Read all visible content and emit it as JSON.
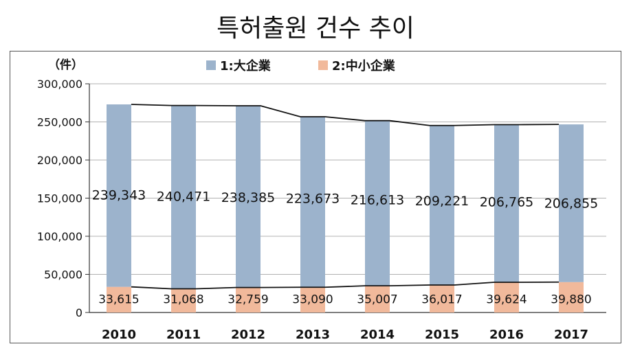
{
  "page_title": "특허출원 건수 추이",
  "colors": {
    "large": "#9cb3cc",
    "sme": "#f1b99b",
    "line": "#111111",
    "grid": "#b0b0b0"
  },
  "chart_data": {
    "type": "bar",
    "stacked": true,
    "title": "특허출원 건수 추이",
    "unit_label": "（件）",
    "categories": [
      "2010",
      "2011",
      "2012",
      "2013",
      "2014",
      "2015",
      "2016",
      "2017"
    ],
    "series": [
      {
        "name": "2:中小企業",
        "values": [
          33615,
          31068,
          32759,
          33090,
          35007,
          36017,
          39624,
          39880
        ]
      },
      {
        "name": "1:大企業",
        "values": [
          239343,
          240471,
          238385,
          223673,
          216613,
          209221,
          206765,
          206855
        ]
      }
    ],
    "value_labels": {
      "large": [
        "239,343",
        "240,471",
        "238,385",
        "223,673",
        "216,613",
        "209,221",
        "206,765",
        "206,855"
      ],
      "sme": [
        "33,615",
        "31,068",
        "32,759",
        "33,090",
        "35,007",
        "36,017",
        "39,624",
        "39,880"
      ]
    },
    "legend": [
      "1:大企業",
      "2:中小企業"
    ],
    "legend_position": "top",
    "y_ticks": [
      "300,000",
      "250,000",
      "200,000",
      "150,000",
      "100,000",
      "50,000",
      "0"
    ],
    "y_tick_values": [
      300000,
      250000,
      200000,
      150000,
      100000,
      50000,
      0
    ],
    "ylim": [
      0,
      300000
    ],
    "grid": true,
    "connector_lines": true
  }
}
